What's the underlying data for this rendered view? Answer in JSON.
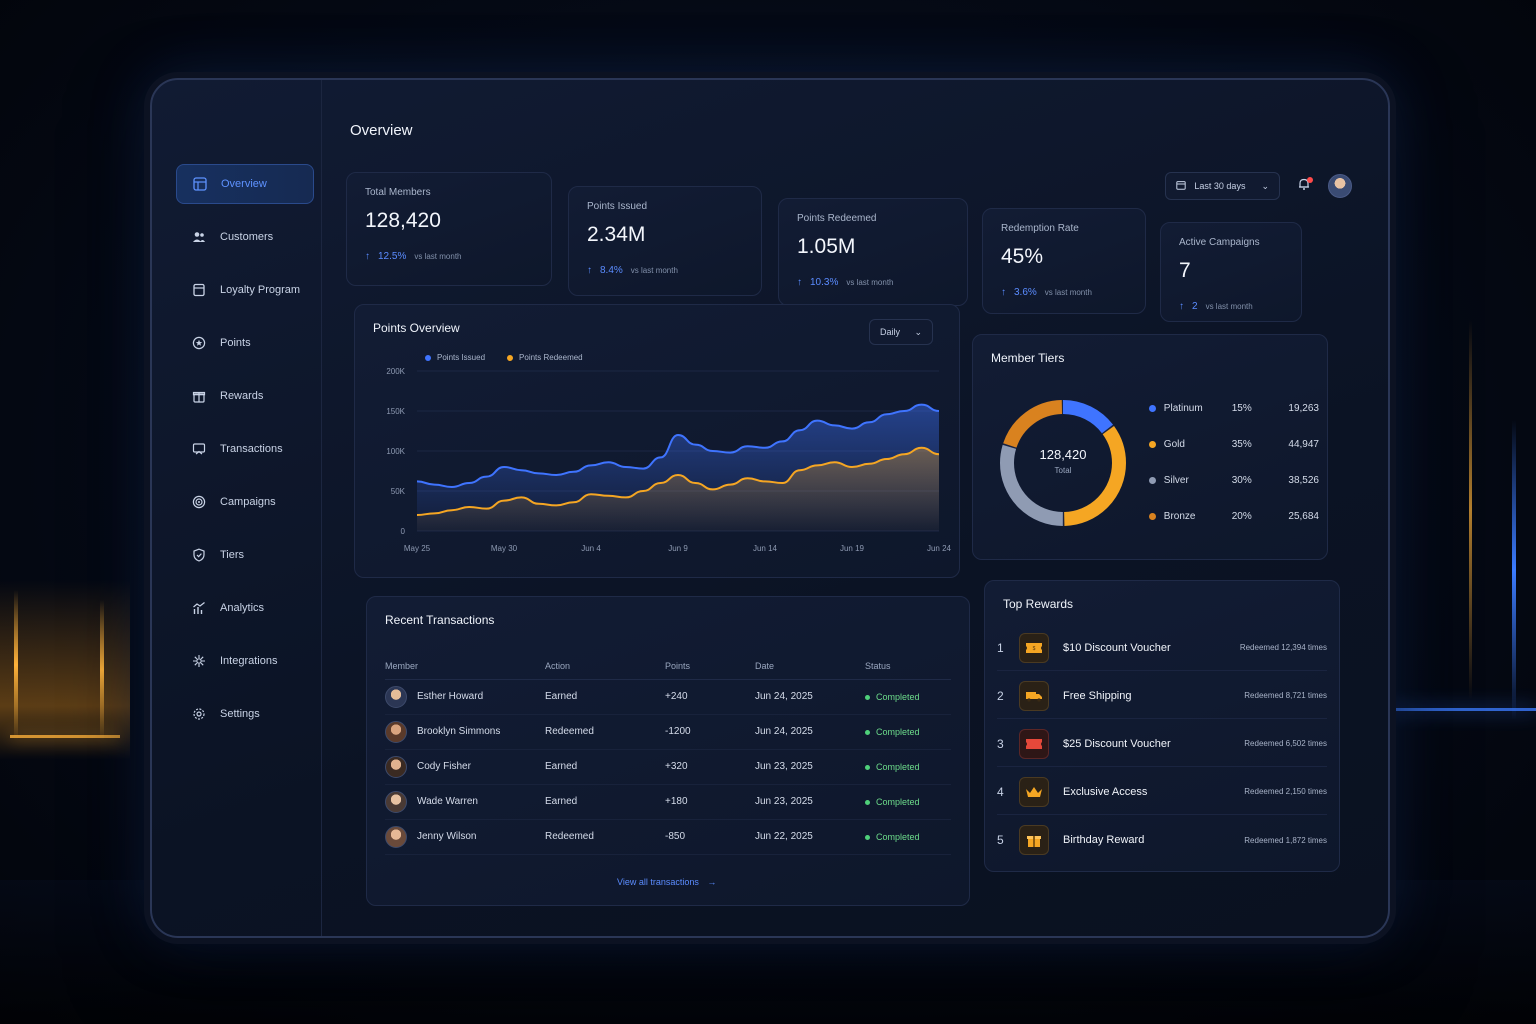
{
  "sidebar": {
    "items": [
      {
        "label": "Overview",
        "icon": "grid-icon",
        "active": true
      },
      {
        "label": "Customers",
        "icon": "users-icon"
      },
      {
        "label": "Loyalty Program",
        "icon": "card-icon"
      },
      {
        "label": "Points",
        "icon": "star-icon"
      },
      {
        "label": "Rewards",
        "icon": "gift-icon"
      },
      {
        "label": "Transactions",
        "icon": "transfer-icon"
      },
      {
        "label": "Campaigns",
        "icon": "target-icon"
      },
      {
        "label": "Tiers",
        "icon": "shield-icon"
      },
      {
        "label": "Analytics",
        "icon": "chart-icon"
      },
      {
        "label": "Integrations",
        "icon": "puzzle-icon"
      },
      {
        "label": "Settings",
        "icon": "gear-icon"
      }
    ]
  },
  "header": {
    "title": "Overview",
    "date_range": "Last 30 days"
  },
  "kpis": [
    {
      "label": "Total Members",
      "value": "128,420",
      "change": "12.5%",
      "compare": "vs last month"
    },
    {
      "label": "Points Issued",
      "value": "2.34M",
      "change": "8.4%",
      "compare": "vs last month"
    },
    {
      "label": "Points Redeemed",
      "value": "1.05M",
      "change": "10.3%",
      "compare": "vs last month"
    },
    {
      "label": "Redemption Rate",
      "value": "45%",
      "change": "3.6%",
      "compare": "vs last month"
    },
    {
      "label": "Active Campaigns",
      "value": "7",
      "change": "2",
      "compare": "vs last month"
    }
  ],
  "points_overview": {
    "title": "Points Overview",
    "period": "Daily",
    "y_ticks": [
      "200K",
      "150K",
      "100K",
      "50K",
      "0"
    ],
    "x_ticks": [
      "May 25",
      "May 30",
      "Jun 4",
      "Jun 9",
      "Jun 14",
      "Jun 19",
      "Jun 24"
    ]
  },
  "chart_data": {
    "type": "area",
    "x": [
      "May 25",
      "May 26",
      "May 27",
      "May 28",
      "May 29",
      "May 30",
      "May 31",
      "Jun 1",
      "Jun 2",
      "Jun 3",
      "Jun 4",
      "Jun 5",
      "Jun 6",
      "Jun 7",
      "Jun 8",
      "Jun 9",
      "Jun 10",
      "Jun 11",
      "Jun 12",
      "Jun 13",
      "Jun 14",
      "Jun 15",
      "Jun 16",
      "Jun 17",
      "Jun 18",
      "Jun 19",
      "Jun 20",
      "Jun 21",
      "Jun 22",
      "Jun 23",
      "Jun 24"
    ],
    "series": [
      {
        "name": "Points Issued",
        "color": "#3f74ff",
        "values": [
          62000,
          58000,
          55000,
          60000,
          68000,
          80000,
          76000,
          72000,
          70000,
          74000,
          82000,
          86000,
          80000,
          78000,
          92000,
          120000,
          108000,
          100000,
          98000,
          106000,
          104000,
          112000,
          126000,
          138000,
          132000,
          128000,
          136000,
          146000,
          150000,
          158000,
          150000
        ]
      },
      {
        "name": "Points Redeemed",
        "color": "#f5a623",
        "values": [
          20000,
          22000,
          26000,
          30000,
          28000,
          38000,
          42000,
          34000,
          32000,
          36000,
          46000,
          44000,
          42000,
          50000,
          60000,
          70000,
          60000,
          52000,
          58000,
          66000,
          62000,
          60000,
          76000,
          82000,
          86000,
          80000,
          84000,
          90000,
          96000,
          104000,
          96000
        ]
      }
    ],
    "ylim": [
      0,
      200000
    ]
  },
  "member_tiers": {
    "title": "Member Tiers",
    "total_value": "128,420",
    "total_label": "Total",
    "tiers": [
      {
        "name": "Platinum",
        "pct": "15%",
        "count": "19,263",
        "color": "#3f74ff",
        "share": 15
      },
      {
        "name": "Gold",
        "pct": "35%",
        "count": "44,947",
        "color": "#f5a623",
        "share": 35
      },
      {
        "name": "Silver",
        "pct": "30%",
        "count": "38,526",
        "color": "#8f9bb3",
        "share": 30
      },
      {
        "name": "Bronze",
        "pct": "20%",
        "count": "25,684",
        "color": "#d9821f",
        "share": 20
      }
    ]
  },
  "transactions": {
    "title": "Recent Transactions",
    "columns": [
      "Member",
      "Action",
      "Points",
      "Date",
      "Status"
    ],
    "rows": [
      {
        "member": "Esther Howard",
        "action": "Earned",
        "points": "+240",
        "date": "Jun 24, 2025",
        "status": "Completed"
      },
      {
        "member": "Brooklyn Simmons",
        "action": "Redeemed",
        "points": "-1200",
        "date": "Jun 24, 2025",
        "status": "Completed"
      },
      {
        "member": "Cody Fisher",
        "action": "Earned",
        "points": "+320",
        "date": "Jun 23, 2025",
        "status": "Completed"
      },
      {
        "member": "Wade Warren",
        "action": "Earned",
        "points": "+180",
        "date": "Jun 23, 2025",
        "status": "Completed"
      },
      {
        "member": "Jenny Wilson",
        "action": "Redeemed",
        "points": "-850",
        "date": "Jun 22, 2025",
        "status": "Completed"
      }
    ],
    "view_all": "View all transactions"
  },
  "top_rewards": {
    "title": "Top Rewards",
    "items": [
      {
        "rank": "1",
        "name": "$10 Discount Voucher",
        "count": "Redeemed 12,394 times",
        "icon": "ticket-icon"
      },
      {
        "rank": "2",
        "name": "Free Shipping",
        "count": "Redeemed 8,721 times",
        "icon": "truck-icon"
      },
      {
        "rank": "3",
        "name": "$25 Discount Voucher",
        "count": "Redeemed 6,502 times",
        "icon": "ticket-icon"
      },
      {
        "rank": "4",
        "name": "Exclusive Access",
        "count": "Redeemed 2,150 times",
        "icon": "crown-icon"
      },
      {
        "rank": "5",
        "name": "Birthday Reward",
        "count": "Redeemed 1,872 times",
        "icon": "gift-icon"
      }
    ]
  }
}
